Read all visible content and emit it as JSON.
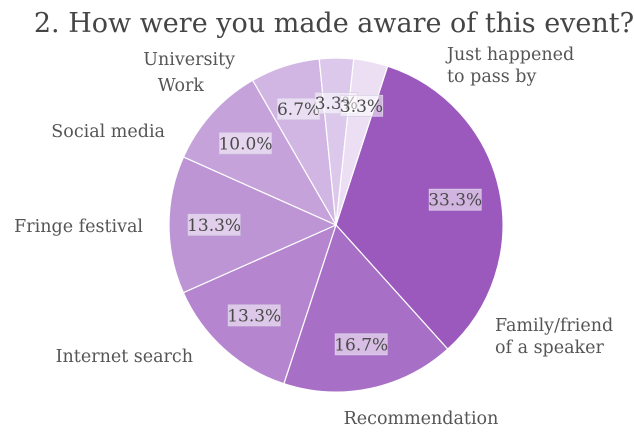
{
  "chart_data": {
    "type": "pie",
    "title": "2. How were you made aware of this event?",
    "slices": [
      {
        "label": "Just happened to pass by",
        "label_lines": [
          "Just happened",
          "to pass by"
        ],
        "value": 33.3,
        "pct_label": "33.3%",
        "color": "#9c59bd"
      },
      {
        "label": "Family/friend of a speaker",
        "label_lines": [
          "Family/friend",
          "of a speaker"
        ],
        "value": 16.7,
        "pct_label": "16.7%",
        "color": "#a86fc6"
      },
      {
        "label": "Recommendation",
        "label_lines": [
          "Recommendation"
        ],
        "value": 13.3,
        "pct_label": "13.3%",
        "color": "#b585cf"
      },
      {
        "label": "Internet search",
        "label_lines": [
          "Internet search"
        ],
        "value": 13.3,
        "pct_label": "13.3%",
        "color": "#bd95d5"
      },
      {
        "label": "Fringe festival",
        "label_lines": [
          "Fringe festival"
        ],
        "value": 10.0,
        "pct_label": "10.0%",
        "color": "#c5a3da"
      },
      {
        "label": "Social media",
        "label_lines": [
          "Social media"
        ],
        "value": 6.7,
        "pct_label": "6.7%",
        "color": "#d1b6e3"
      },
      {
        "label": "Work",
        "label_lines": [
          "Work"
        ],
        "value": 3.3,
        "pct_label": "3.3%",
        "color": "#dcc8ea"
      },
      {
        "label": "University",
        "label_lines": [
          "University"
        ],
        "value": 3.3,
        "pct_label": "3.3%",
        "color": "#ecdff4"
      }
    ],
    "start_angle_deg": 72,
    "direction": "clockwise",
    "legend": "none"
  }
}
